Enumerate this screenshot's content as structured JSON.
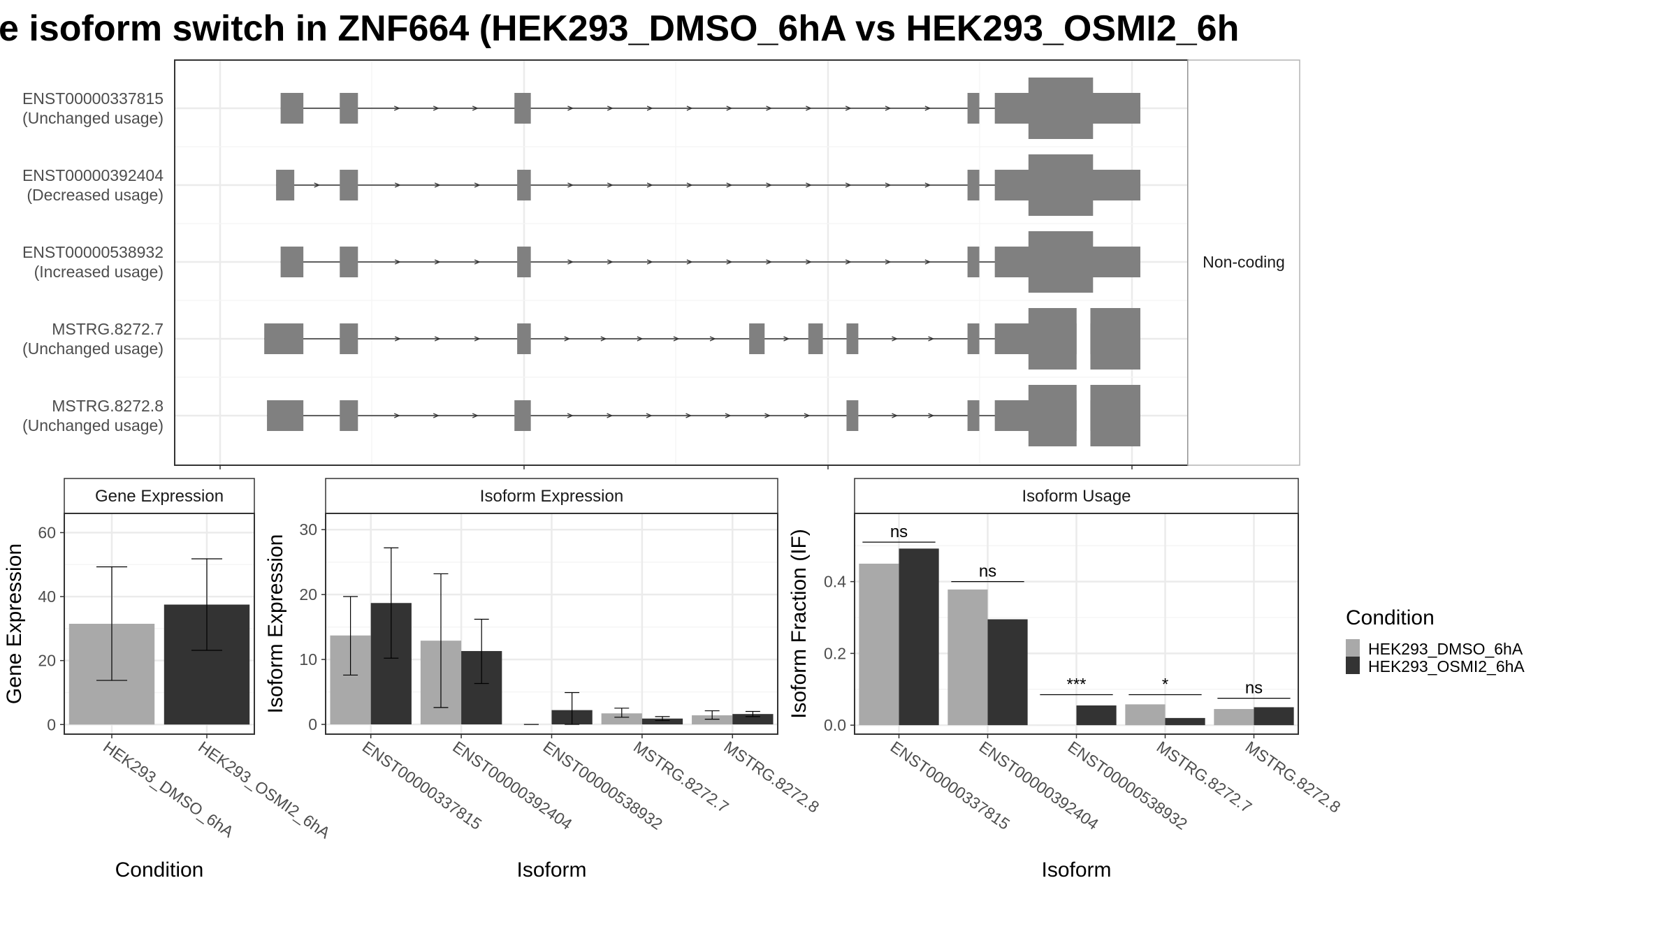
{
  "page": {
    "title": "e isoform switch in ZNF664 (HEK293_DMSO_6hA vs HEK293_OSMI2_6h"
  },
  "colors": {
    "dmso": "#a9a9a9",
    "osmi2": "#333333",
    "exon": "#808080",
    "grid": "#ebebeb",
    "panel_border": "#333333",
    "text": "#4d4d4d"
  },
  "chart_data": [
    {
      "type": "structure",
      "name": "transcript-structure",
      "strip_label": "Non-coding",
      "transcripts": [
        {
          "id": "ENST00000337815",
          "usage": "(Unchanged usage)",
          "exons": [
            [
              0.055,
              0.08
            ],
            [
              0.12,
              0.14
            ],
            [
              0.312,
              0.33
            ],
            [
              0.81,
              0.823
            ],
            [
              0.84,
              1.0
            ]
          ],
          "cds": [
            [
              0.877,
              0.948
            ]
          ],
          "gaps": []
        },
        {
          "id": "ENST00000392404",
          "usage": "(Decreased usage)",
          "exons": [
            [
              0.05,
              0.07
            ],
            [
              0.12,
              0.14
            ],
            [
              0.315,
              0.33
            ],
            [
              0.81,
              0.823
            ],
            [
              0.84,
              1.0
            ]
          ],
          "cds": [
            [
              0.877,
              0.948
            ]
          ],
          "gaps": []
        },
        {
          "id": "ENST00000538932",
          "usage": "(Increased usage)",
          "exons": [
            [
              0.055,
              0.08
            ],
            [
              0.12,
              0.14
            ],
            [
              0.315,
              0.33
            ],
            [
              0.81,
              0.823
            ],
            [
              0.84,
              1.0
            ]
          ],
          "cds": [
            [
              0.877,
              0.948
            ]
          ],
          "gaps": []
        },
        {
          "id": "MSTRG.8272.7",
          "usage": "(Unchanged usage)",
          "exons": [
            [
              0.037,
              0.08
            ],
            [
              0.12,
              0.14
            ],
            [
              0.315,
              0.33
            ],
            [
              0.57,
              0.587
            ],
            [
              0.635,
              0.651
            ],
            [
              0.677,
              0.69
            ],
            [
              0.81,
              0.823
            ],
            [
              0.84,
              1.0
            ]
          ],
          "cds": [
            [
              0.877,
              0.93
            ],
            [
              0.945,
              1.0
            ]
          ],
          "gaps": [
            [
              0.93,
              0.945
            ]
          ]
        },
        {
          "id": "MSTRG.8272.8",
          "usage": "(Unchanged usage)",
          "exons": [
            [
              0.04,
              0.08
            ],
            [
              0.12,
              0.14
            ],
            [
              0.312,
              0.33
            ],
            [
              0.677,
              0.69
            ],
            [
              0.81,
              0.823
            ],
            [
              0.84,
              1.0
            ]
          ],
          "cds": [
            [
              0.877,
              0.93
            ],
            [
              0.945,
              1.0
            ]
          ],
          "gaps": [
            [
              0.93,
              0.945
            ]
          ]
        }
      ]
    },
    {
      "type": "bar",
      "name": "gene-expression",
      "title": "Gene Expression",
      "xlabel": "Condition",
      "ylabel": "Gene Expression",
      "ylim": [
        -3,
        66
      ],
      "yticks": [
        0,
        20,
        40,
        60
      ],
      "grid": true,
      "categories": [
        "HEK293_DMSO_6hA",
        "HEK293_OSMI2_6hA"
      ],
      "values": [
        31.5,
        37.5
      ],
      "error_low": [
        13.8,
        23.2
      ],
      "error_high": [
        49.3,
        51.8
      ]
    },
    {
      "type": "bar",
      "name": "isoform-expression",
      "title": "Isoform Expression",
      "xlabel": "Isoform",
      "ylabel": "Isoform Expression",
      "ylim": [
        -1.5,
        32.5
      ],
      "yticks": [
        0,
        10,
        20,
        30
      ],
      "grid": true,
      "categories": [
        "ENST00000337815",
        "ENST00000392404",
        "ENST00000538932",
        "MSTRG.8272.7",
        "MSTRG.8272.8"
      ],
      "series": [
        {
          "name": "HEK293_DMSO_6hA",
          "values": [
            13.7,
            12.9,
            0.0,
            1.7,
            1.4
          ],
          "error_low": [
            7.6,
            2.6,
            0.0,
            1.1,
            0.8
          ],
          "error_high": [
            19.7,
            23.2,
            0.0,
            2.5,
            2.1
          ]
        },
        {
          "name": "HEK293_OSMI2_6hA",
          "values": [
            18.7,
            11.3,
            2.2,
            0.9,
            1.6
          ],
          "error_low": [
            10.2,
            6.3,
            0.0,
            0.6,
            1.2
          ],
          "error_high": [
            27.2,
            16.2,
            4.9,
            1.2,
            2.0
          ]
        }
      ]
    },
    {
      "type": "bar",
      "name": "isoform-usage",
      "title": "Isoform Usage",
      "xlabel": "Isoform",
      "ylabel": "Isoform Fraction (IF)",
      "ylim": [
        -0.025,
        0.59
      ],
      "yticks": [
        0.0,
        0.2,
        0.4
      ],
      "ytick_labels": [
        "0.0",
        "0.2",
        "0.4"
      ],
      "grid": true,
      "categories": [
        "ENST00000337815",
        "ENST00000392404",
        "ENST00000538932",
        "MSTRG.8272.7",
        "MSTRG.8272.8"
      ],
      "series": [
        {
          "name": "HEK293_DMSO_6hA",
          "values": [
            0.45,
            0.378,
            0.0,
            0.058,
            0.045
          ]
        },
        {
          "name": "HEK293_OSMI2_6hA",
          "values": [
            0.492,
            0.295,
            0.055,
            0.02,
            0.05
          ]
        }
      ],
      "significance": [
        "ns",
        "ns",
        "***",
        "*",
        "ns"
      ],
      "significance_y": [
        0.51,
        0.4,
        0.085,
        0.085,
        0.075
      ]
    }
  ],
  "legend": {
    "title": "Condition",
    "placement": "right",
    "items": [
      "HEK293_DMSO_6hA",
      "HEK293_OSMI2_6hA"
    ]
  }
}
